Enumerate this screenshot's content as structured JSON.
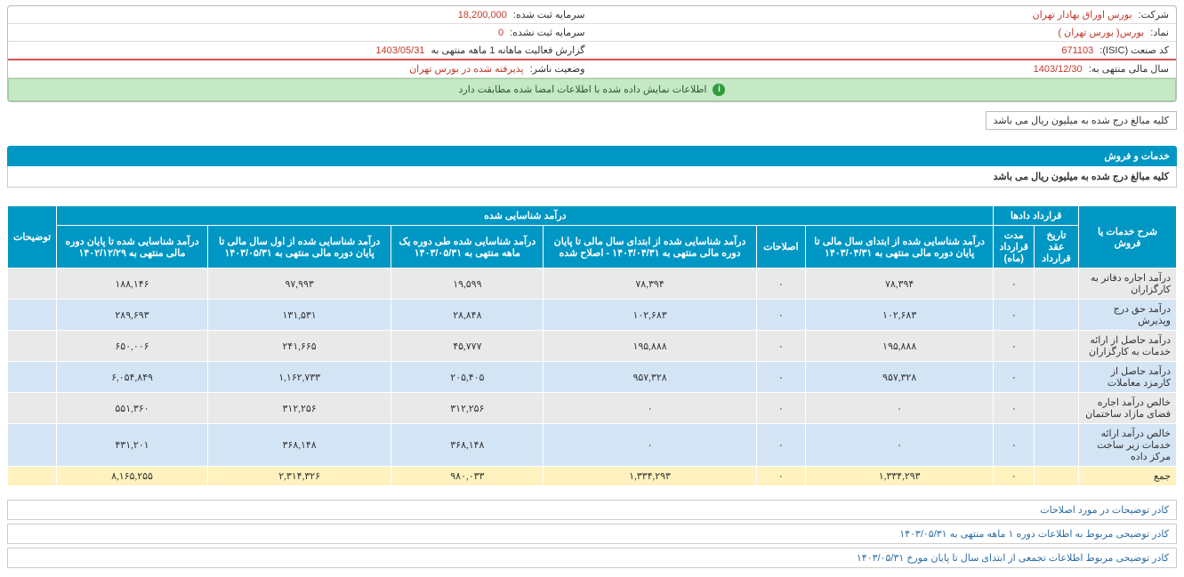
{
  "info": {
    "company_label": "شرکت:",
    "company_value": "بورس اوراق بهادار تهران",
    "capital_reg_label": "سرمایه ثبت شده:",
    "capital_reg_value": "18,200,000",
    "symbol_label": "نماد:",
    "symbol_value": "بورس( بورس تهران )",
    "capital_unreg_label": "سرمایه ثبت نشده:",
    "capital_unreg_value": "0",
    "isic_label": "کد صنعت (ISIC):",
    "isic_value": "671103",
    "report_label": "گزارش فعالیت ماهانه 1 ماهه منتهی به",
    "report_value": "1403/05/31",
    "fy_label": "سال مالی منتهی به:",
    "fy_value": "1403/12/30",
    "status_label": "وضعیت ناشر:",
    "status_value": "پذیرفته شده در بورس تهران"
  },
  "banner": "اطلاعات نمایش داده شده با اطلاعات امضا شده مطابقت دارد",
  "unit_note": "کلیه مبالغ درج شده به میلیون ریال می باشد",
  "section": {
    "title": "خدمات و فروش",
    "subtitle": "کلیه مبالغ درج شده به میلیون ریال می باشد"
  },
  "table": {
    "headers": {
      "desc": "شرح خدمات یا فروش",
      "contract": "قرارداد دادها",
      "contract_date": "تاریخ عقد قرارداد",
      "contract_dur": "مدت قرارداد (ماه)",
      "recognized": "درآمد شناسایی شده",
      "c1": "درآمد شناسایی شده از ابتدای سال مالی تا پایان دوره مالی منتهی به ۱۴۰۳/۰۴/۳۱",
      "c2": "اصلاحات",
      "c3": "درآمد شناسایی شده از ابتدای سال مالی تا پایان دوره مالی منتهی به ۱۴۰۳/۰۴/۳۱ - اصلاح شده",
      "c4": "درآمد شناسایی شده طی دوره یک ماهه منتهی به ۱۴۰۳/۰۵/۳۱",
      "c5": "درآمد شناسایی شده از اول سال مالی تا پایان دوره مالی منتهی به ۱۴۰۳/۰۵/۳۱",
      "c6": "درآمد شناسایی شده تا پایان دوره مالی منتهی به ۱۴۰۲/۱۲/۲۹",
      "notes": "توضیحات"
    },
    "rows": [
      {
        "desc": "درآمد اجاره دفاتر به کارگزاران",
        "d": "",
        "m": "۰",
        "c1": "۷۸,۳۹۴",
        "c2": "۰",
        "c3": "۷۸,۳۹۴",
        "c4": "۱۹,۵۹۹",
        "c5": "۹۷,۹۹۳",
        "c6": "۱۸۸,۱۴۶",
        "n": ""
      },
      {
        "desc": "درآمد حق درج وپذیرش",
        "d": "",
        "m": "۰",
        "c1": "۱۰۲,۶۸۳",
        "c2": "۰",
        "c3": "۱۰۲,۶۸۳",
        "c4": "۲۸,۸۴۸",
        "c5": "۱۳۱,۵۳۱",
        "c6": "۲۸۹,۶۹۳",
        "n": ""
      },
      {
        "desc": "درآمد حاصل از ارائه خدمات به کارگزاران",
        "d": "",
        "m": "۰",
        "c1": "۱۹۵,۸۸۸",
        "c2": "۰",
        "c3": "۱۹۵,۸۸۸",
        "c4": "۴۵,۷۷۷",
        "c5": "۲۴۱,۶۶۵",
        "c6": "۶۵۰,۰۰۶",
        "n": ""
      },
      {
        "desc": "درآمد حاصل از کارمزد معاملات",
        "d": "",
        "m": "۰",
        "c1": "۹۵۷,۳۲۸",
        "c2": "۰",
        "c3": "۹۵۷,۳۲۸",
        "c4": "۲۰۵,۴۰۵",
        "c5": "۱,۱۶۲,۷۳۳",
        "c6": "۶,۰۵۴,۸۴۹",
        "n": ""
      },
      {
        "desc": "خالص درآمد اجاره فضای مازاد ساختمان",
        "d": "",
        "m": "۰",
        "c1": "۰",
        "c2": "۰",
        "c3": "۰",
        "c4": "۳۱۲,۲۵۶",
        "c5": "۳۱۲,۲۵۶",
        "c6": "۵۵۱,۳۶۰",
        "n": ""
      },
      {
        "desc": "خالص درآمد ارائه خدمات زیر ساخت مرکز داده",
        "d": "",
        "m": "۰",
        "c1": "۰",
        "c2": "۰",
        "c3": "۰",
        "c4": "۳۶۸,۱۴۸",
        "c5": "۳۶۸,۱۴۸",
        "c6": "۴۳۱,۲۰۱",
        "n": ""
      }
    ],
    "total": {
      "desc": "جمع",
      "d": "",
      "m": "۰",
      "c1": "۱,۳۳۴,۲۹۳",
      "c2": "۰",
      "c3": "۱,۳۳۴,۲۹۳",
      "c4": "۹۸۰,۰۳۳",
      "c5": "۲,۳۱۴,۳۲۶",
      "c6": "۸,۱۶۵,۲۵۵",
      "n": ""
    }
  },
  "footers": [
    "کادر توضیحات در مورد اصلاحات",
    "کادر توضیحی مربوط به اطلاعات دوره ۱ ماهه منتهی به ۱۴۰۳/۰۵/۳۱",
    "کادر توضیحی مربوط اطلاعات تجمعی از ابتدای سال تا پایان مورخ ۱۴۰۳/۰۵/۳۱"
  ]
}
